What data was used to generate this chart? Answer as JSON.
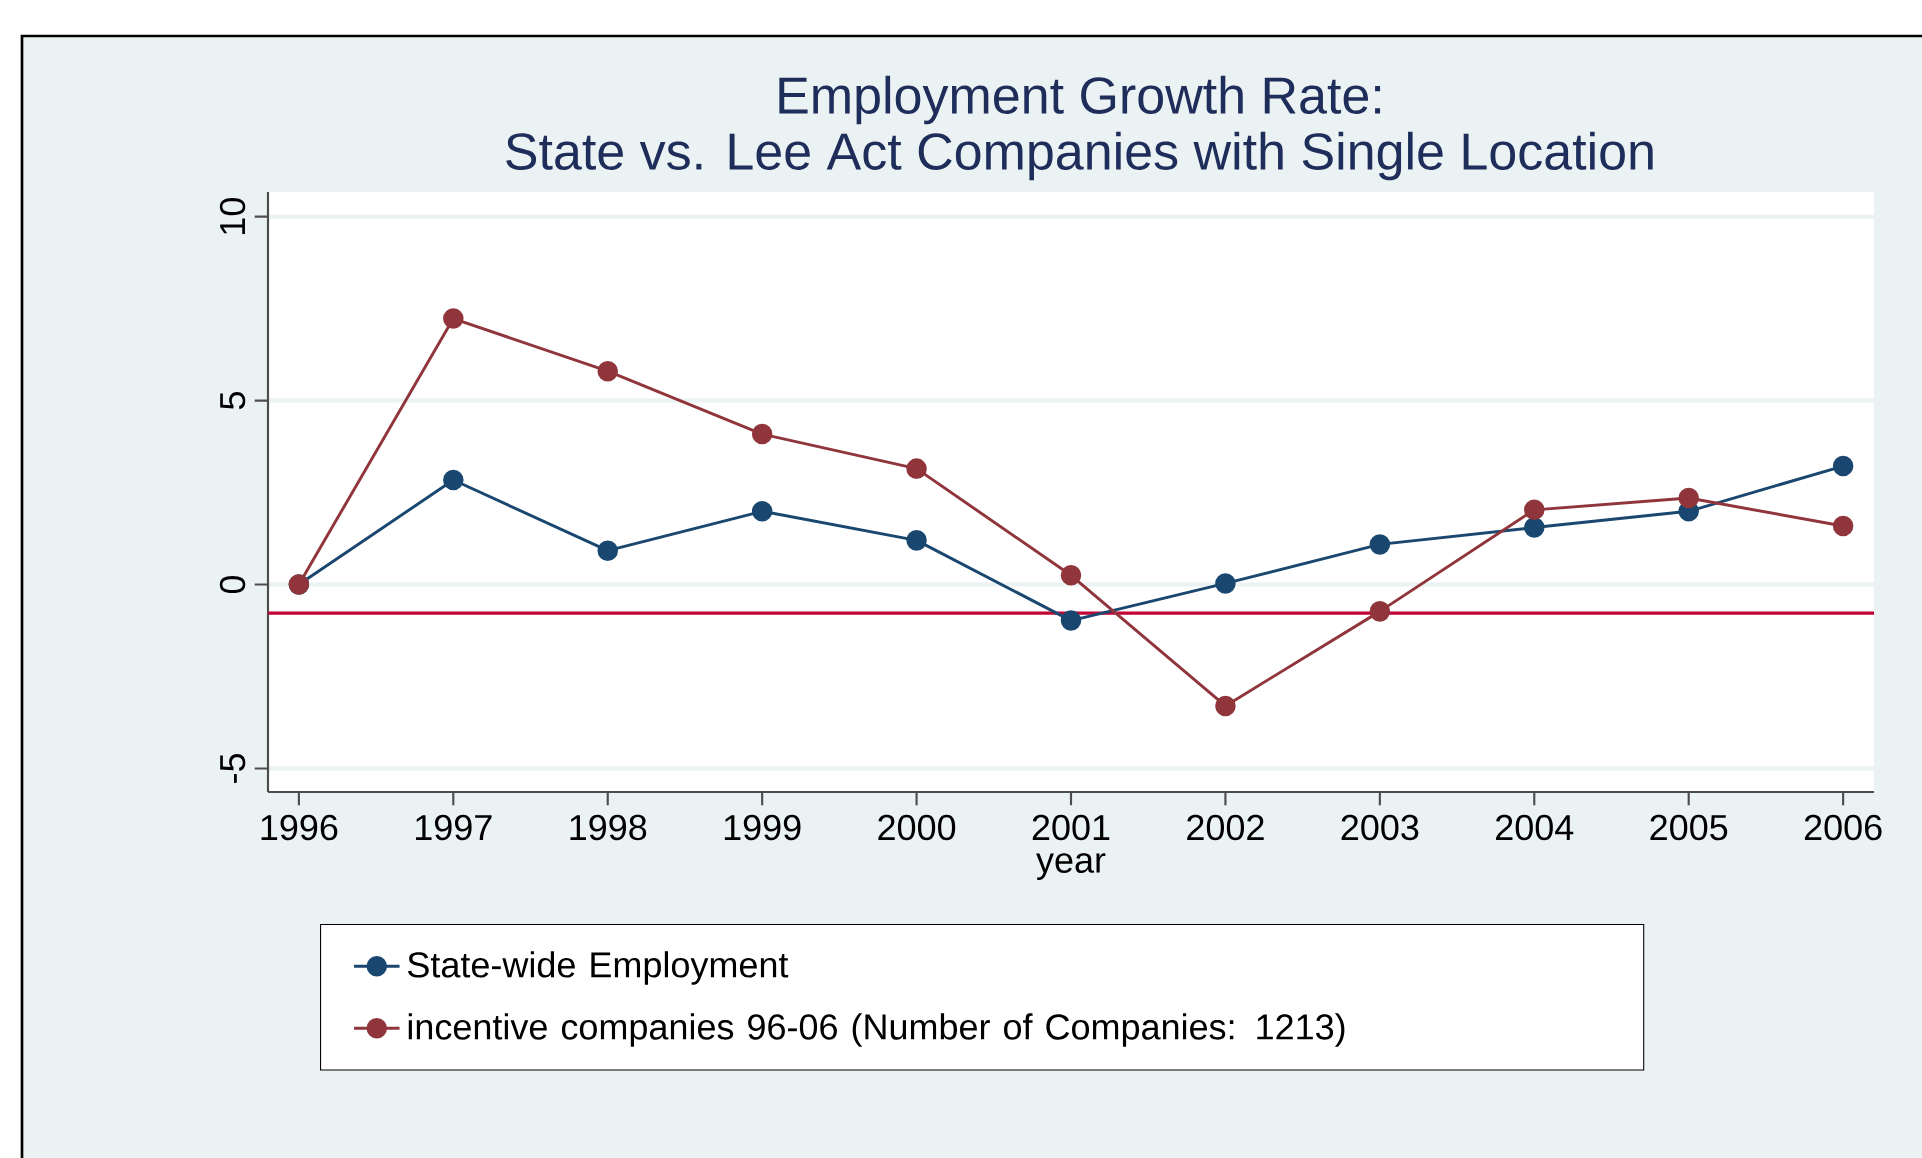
{
  "chart_data": {
    "type": "line",
    "title": "Employment Growth Rate:",
    "subtitle": "State vs. Lee Act Companies with Single Location",
    "xlabel": "year",
    "x": [
      1996,
      1997,
      1998,
      1999,
      2000,
      2001,
      2002,
      2003,
      2004,
      2005,
      2006
    ],
    "series": [
      {
        "name": "State-wide Employment",
        "color": "#1a476f",
        "values": [
          0,
          2.84,
          0.92,
          1.99,
          1.2,
          -0.98,
          0.03,
          1.09,
          1.55,
          1.99,
          3.22
        ]
      },
      {
        "name": "incentive companies 96-06 (Number of Companies: 1213)",
        "color": "#90353b",
        "values": [
          0,
          7.23,
          5.8,
          4.09,
          3.15,
          0.25,
          -3.3,
          -0.73,
          2.03,
          2.35,
          1.59
        ]
      }
    ],
    "xlim": [
      1995.8,
      2006.2
    ],
    "ylim": [
      -5.64,
      10.67
    ],
    "xticks": [
      1996,
      1997,
      1998,
      1999,
      2000,
      2001,
      2002,
      2003,
      2004,
      2005,
      2006
    ],
    "yticks": [
      -5,
      0,
      5,
      10
    ],
    "ref_lines": [
      {
        "axis": "y",
        "value": -0.78,
        "color": "#c10534"
      }
    ],
    "grid": "y",
    "legend": "bottom",
    "marker": "circle",
    "line_style": "solid"
  }
}
